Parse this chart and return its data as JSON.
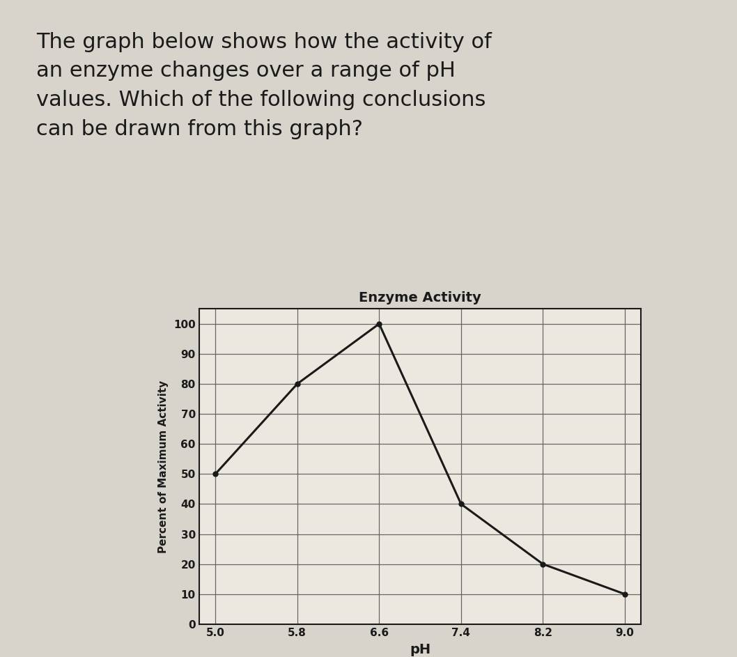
{
  "title": "Enzyme Activity",
  "xlabel": "pH",
  "ylabel": "Percent of Maximum Activity",
  "x_values": [
    5.0,
    5.8,
    6.6,
    7.4,
    8.2,
    9.0
  ],
  "y_values": [
    50,
    80,
    100,
    40,
    20,
    10
  ],
  "x_ticks": [
    5.0,
    5.8,
    6.6,
    7.4,
    8.2,
    9.0
  ],
  "y_ticks": [
    0,
    10,
    20,
    30,
    40,
    50,
    60,
    70,
    80,
    90,
    100
  ],
  "line_color": "#1a1a1a",
  "marker_color": "#1a1a1a",
  "grid_color": "#666666",
  "background_color": "#d8d4cc",
  "chart_bg_color": "#ede8df",
  "text_color": "#1a1a1a",
  "question_text_line1": "The graph below shows how the activity of",
  "question_text_line2": "an enzyme changes over a range of pH",
  "question_text_line3": "values. Which of the following conclusions",
  "question_text_line4": "can be drawn from this graph?",
  "title_fontsize": 14,
  "axis_label_fontsize": 12,
  "tick_fontsize": 11,
  "question_fontsize": 22
}
